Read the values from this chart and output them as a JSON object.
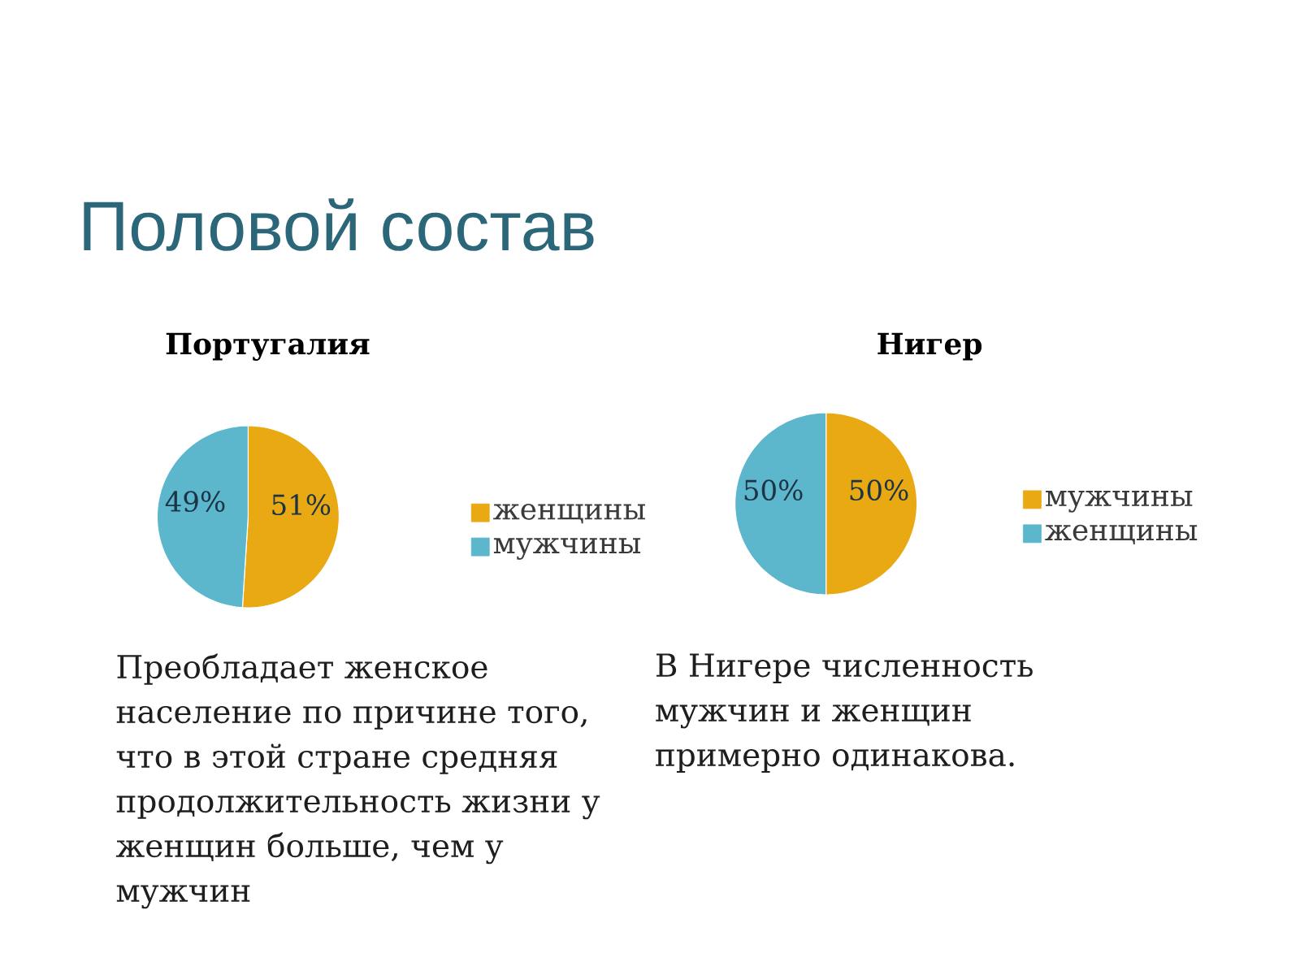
{
  "chart_data": [
    {
      "type": "other",
      "title": "Половой состав"
    },
    {
      "type": "pie",
      "title": "Португалия",
      "categories": [
        "женщины",
        "мужчины"
      ],
      "values": [
        51,
        49
      ],
      "colors": [
        "#e9a912",
        "#5cb6cc"
      ],
      "value_labels": [
        "51%",
        "49%"
      ],
      "legend": "right",
      "annotations": [
        "Преобладает женское население по причине того, что в этой стране средняя продолжительность жизни у женщин больше, чем у мужчин"
      ]
    },
    {
      "type": "pie",
      "title": "Нигер",
      "categories": [
        "мужчины",
        "женщины"
      ],
      "values": [
        50,
        50
      ],
      "colors": [
        "#e9a912",
        "#5cb6cc"
      ],
      "value_labels": [
        "50%",
        "50%"
      ],
      "legend": "right",
      "annotations": [
        "В Нигере численность мужчин и женщин примерно одинакова."
      ]
    }
  ]
}
